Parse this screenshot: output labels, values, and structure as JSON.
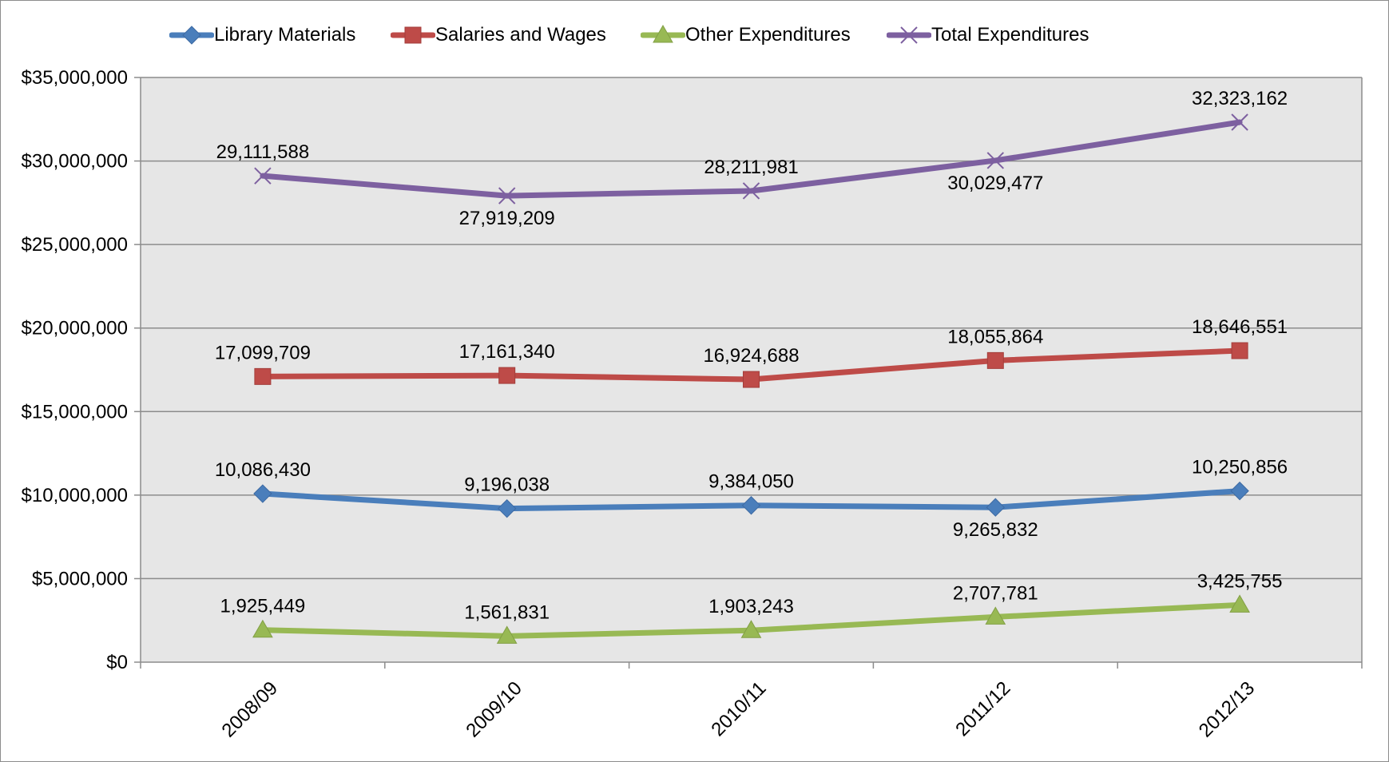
{
  "chart_data": {
    "type": "line",
    "title": "",
    "xlabel": "",
    "ylabel": "",
    "categories": [
      "2008/09",
      "2009/10",
      "2010/11",
      "2011/12",
      "2012/13"
    ],
    "ylim": [
      0,
      35000000
    ],
    "y_ticks": [
      0,
      5000000,
      10000000,
      15000000,
      20000000,
      25000000,
      30000000,
      35000000
    ],
    "y_tick_labels": [
      "$0",
      "$5,000,000",
      "$10,000,000",
      "$15,000,000",
      "$20,000,000",
      "$25,000,000",
      "$30,000,000",
      "$35,000,000"
    ],
    "grid": true,
    "legend_position": "top",
    "plot_background": "#e6e6e6",
    "series": [
      {
        "name": "Library Materials",
        "color": "#4a7ebb",
        "marker": "diamond",
        "values": [
          10086430,
          9196038,
          9384050,
          9265832,
          10250856
        ],
        "labels": [
          "10,086,430",
          "9,196,038",
          "9,384,050",
          "9,265,832",
          "10,250,856"
        ],
        "label_positions": [
          "above",
          "above",
          "above",
          "below",
          "above"
        ]
      },
      {
        "name": "Salaries and Wages",
        "color": "#be4b48",
        "marker": "square",
        "values": [
          17099709,
          17161340,
          16924688,
          18055864,
          18646551
        ],
        "labels": [
          "17,099,709",
          "17,161,340",
          "16,924,688",
          "18,055,864",
          "18,646,551"
        ],
        "label_positions": [
          "above",
          "above",
          "above",
          "above",
          "above"
        ]
      },
      {
        "name": "Other Expenditures",
        "color": "#98b954",
        "marker": "triangle",
        "values": [
          1925449,
          1561831,
          1903243,
          2707781,
          3425755
        ],
        "labels": [
          "1,925,449",
          "1,561,831",
          "1,903,243",
          "2,707,781",
          "3,425,755"
        ],
        "label_positions": [
          "above",
          "above",
          "above",
          "above",
          "above"
        ]
      },
      {
        "name": "Total Expenditures",
        "color": "#7d60a0",
        "marker": "x",
        "values": [
          29111588,
          27919209,
          28211981,
          30029477,
          32323162
        ],
        "labels": [
          "29,111,588",
          "27,919,209",
          "28,211,981",
          "30,029,477",
          "32,323,162"
        ],
        "label_positions": [
          "above",
          "below",
          "above",
          "below",
          "above"
        ]
      }
    ]
  }
}
